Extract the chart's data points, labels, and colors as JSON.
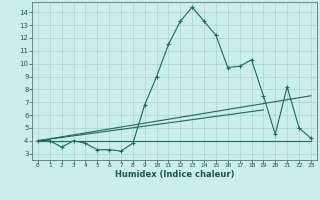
{
  "title": "",
  "xlabel": "Humidex (Indice chaleur)",
  "bg_color": "#cceee8",
  "grid_color": "#b0d8d0",
  "line_color": "#1a6b5a",
  "xlim": [
    -0.5,
    23.5
  ],
  "ylim": [
    2.5,
    14.8
  ],
  "xticks": [
    0,
    1,
    2,
    3,
    4,
    5,
    6,
    7,
    8,
    9,
    10,
    11,
    12,
    13,
    14,
    15,
    16,
    17,
    18,
    19,
    20,
    21,
    22,
    23
  ],
  "yticks": [
    3,
    4,
    5,
    6,
    7,
    8,
    9,
    10,
    11,
    12,
    13,
    14
  ],
  "series1_x": [
    0,
    1,
    2,
    3,
    4,
    5,
    6,
    7,
    8,
    9,
    10,
    11,
    12,
    13,
    14,
    15,
    16,
    17,
    18,
    19,
    20,
    21,
    22,
    23
  ],
  "series1_y": [
    4.0,
    4.0,
    3.5,
    4.0,
    3.8,
    3.3,
    3.3,
    3.2,
    3.8,
    6.8,
    9.0,
    11.5,
    13.3,
    14.4,
    13.3,
    12.2,
    9.7,
    9.8,
    10.3,
    7.5,
    4.5,
    8.2,
    5.0,
    4.2
  ],
  "series2_x": [
    0,
    23
  ],
  "series2_y": [
    4.0,
    4.0
  ],
  "series3_x": [
    0,
    23
  ],
  "series3_y": [
    4.0,
    7.5
  ],
  "series4_x": [
    0,
    19
  ],
  "series4_y": [
    4.0,
    6.4
  ]
}
